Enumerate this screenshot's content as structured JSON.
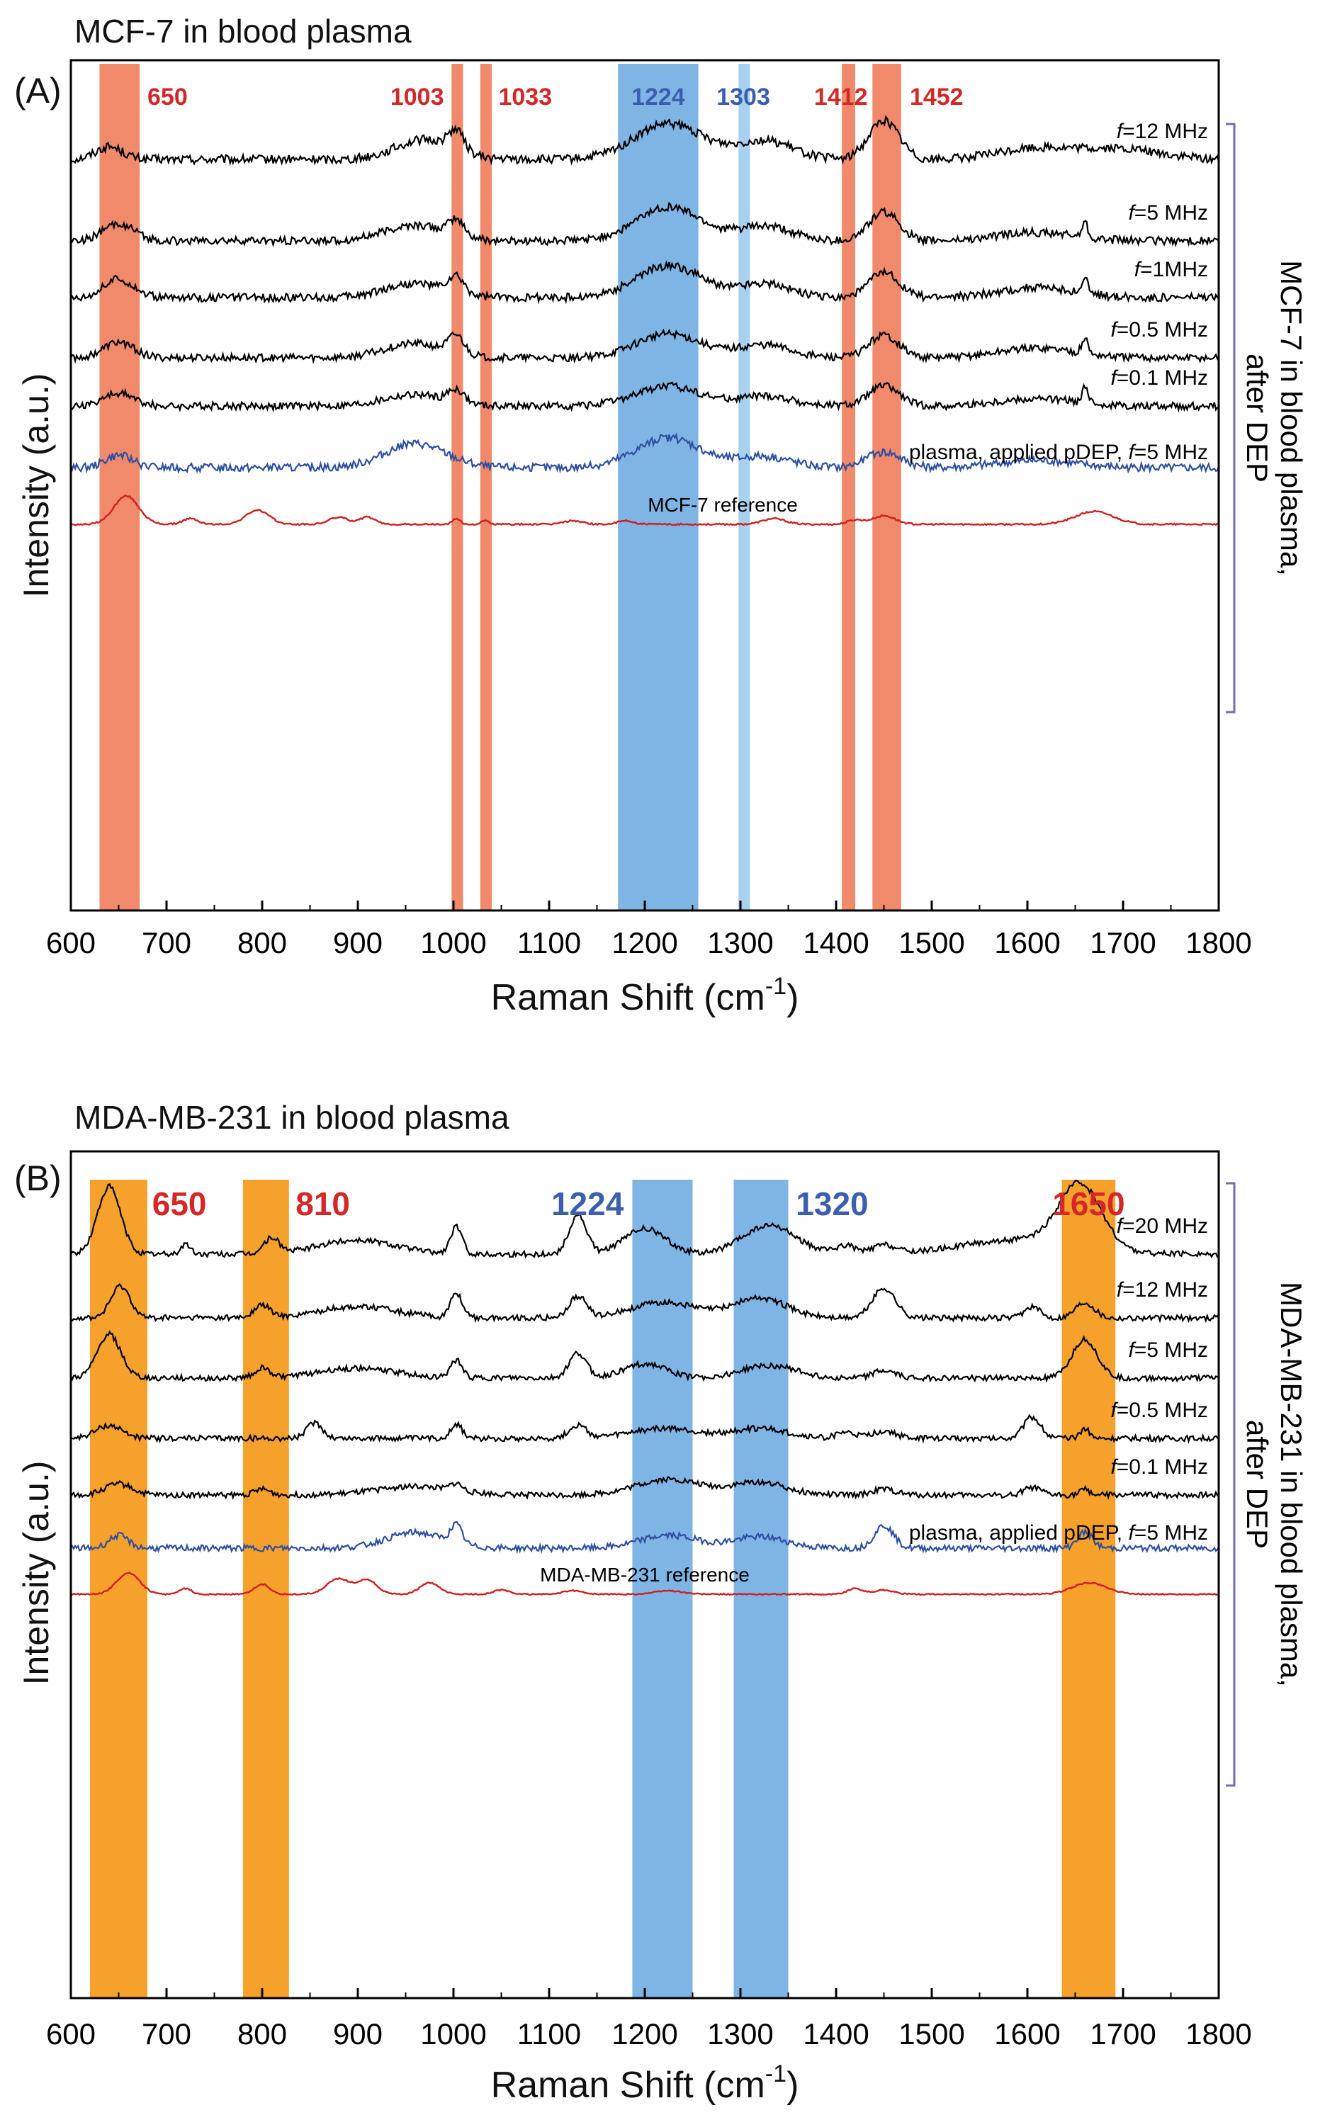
{
  "colors": {
    "red_band": "#f08a6b",
    "orange_band": "#f7a12d",
    "blue_band": "#7fb5e5",
    "light_blue_band": "#a8d0ef",
    "red_label": "#d62728",
    "blue_label": "#3b5fb0",
    "trace_black": "#000000",
    "trace_blue": "#2f4fa3",
    "trace_red": "#d11f1f",
    "bracket": "#7a68b3"
  },
  "chart_data": [
    {
      "type": "line",
      "panel": "(A)",
      "title": "MCF-7 in blood plasma",
      "xlabel": "Raman Shift (cm",
      "xlabel_sup": "-1",
      "xlabel_close": ")",
      "ylabel": "Intensity (a.u.)",
      "xlim": [
        600,
        1800
      ],
      "xticks": [
        600,
        700,
        800,
        900,
        1000,
        1100,
        1200,
        1300,
        1400,
        1500,
        1600,
        1700,
        1800
      ],
      "bracket_label_1": "MCF-7 in blood plasma,",
      "bracket_label_2": "after DEP",
      "bands": [
        {
          "label": "650",
          "from": 630,
          "to": 672,
          "color": "red",
          "label_pos": 680,
          "label_anchor": "start"
        },
        {
          "label": "1003",
          "from": 998,
          "to": 1010,
          "color": "red",
          "label_pos": 990,
          "label_anchor": "end"
        },
        {
          "label": "1033",
          "from": 1028,
          "to": 1040,
          "color": "red",
          "label_pos": 1047,
          "label_anchor": "start"
        },
        {
          "label": "1224",
          "from": 1172,
          "to": 1256,
          "color": "blue",
          "label_pos": 1214,
          "label_anchor": "middle"
        },
        {
          "label": "1303",
          "from": 1298,
          "to": 1310,
          "color": "lightblue",
          "label_pos": 1303,
          "label_anchor": "middle"
        },
        {
          "label": "1412",
          "from": 1406,
          "to": 1420,
          "color": "red",
          "label_pos": 1405,
          "label_anchor": "middle"
        },
        {
          "label": "1452",
          "from": 1438,
          "to": 1468,
          "color": "red",
          "label_pos": 1477,
          "label_anchor": "start"
        }
      ],
      "series": [
        {
          "name": "f=12 MHz",
          "italic": "f",
          "rest": "=12 MHz",
          "color": "black",
          "noise": 2.8,
          "offset": 140,
          "peaks": [
            [
              640,
              14,
              18
            ],
            [
              970,
              30,
              28
            ],
            [
              1003,
              8,
              28
            ],
            [
              1225,
              36,
              50
            ],
            [
              1325,
              30,
              26
            ],
            [
              1450,
              16,
              55
            ],
            [
              1610,
              40,
              16
            ],
            [
              1700,
              40,
              14
            ]
          ]
        },
        {
          "name": "f=5 MHz",
          "italic": "f",
          "rest": "=5 MHz",
          "color": "black",
          "noise": 2.6,
          "offset": 255,
          "peaks": [
            [
              650,
              16,
              24
            ],
            [
              960,
              32,
              22
            ],
            [
              1003,
              8,
              22
            ],
            [
              1225,
              34,
              48
            ],
            [
              1325,
              28,
              20
            ],
            [
              1450,
              16,
              40
            ],
            [
              1610,
              40,
              12
            ],
            [
              1660,
              3,
              22
            ]
          ]
        },
        {
          "name": "f=1MHz",
          "italic": "f",
          "rest": "=1MHz",
          "color": "black",
          "noise": 2.6,
          "offset": 335,
          "peaks": [
            [
              650,
              16,
              26
            ],
            [
              960,
              32,
              20
            ],
            [
              1003,
              8,
              22
            ],
            [
              1225,
              34,
              45
            ],
            [
              1325,
              28,
              20
            ],
            [
              1450,
              16,
              35
            ],
            [
              1610,
              40,
              14
            ],
            [
              1660,
              3,
              22
            ]
          ]
        },
        {
          "name": "f=0.5 MHz",
          "italic": "f",
          "rest": "=0.5 MHz",
          "color": "black",
          "noise": 2.4,
          "offset": 420,
          "peaks": [
            [
              650,
              16,
              22
            ],
            [
              960,
              32,
              20
            ],
            [
              1003,
              8,
              25
            ],
            [
              1225,
              34,
              34
            ],
            [
              1325,
              28,
              18
            ],
            [
              1450,
              16,
              32
            ],
            [
              1610,
              40,
              14
            ],
            [
              1660,
              3,
              22
            ]
          ]
        },
        {
          "name": "f=0.1 MHz",
          "italic": "f",
          "rest": "=0.1 MHz",
          "color": "black",
          "noise": 2.4,
          "offset": 488,
          "peaks": [
            [
              650,
              16,
              18
            ],
            [
              960,
              32,
              16
            ],
            [
              1003,
              8,
              18
            ],
            [
              1225,
              34,
              28
            ],
            [
              1325,
              28,
              14
            ],
            [
              1450,
              16,
              28
            ],
            [
              1610,
              40,
              10
            ],
            [
              1660,
              3,
              22
            ]
          ]
        },
        {
          "name": "plasma, applied pDEP, f=5 MHz",
          "pre": "plasma, applied pDEP, ",
          "italic": "f",
          "rest": "=5 MHz",
          "color": "blue",
          "noise": 2.6,
          "offset": 575,
          "peaks": [
            [
              650,
              14,
              18
            ],
            [
              960,
              32,
              34
            ],
            [
              1225,
              34,
              42
            ],
            [
              1325,
              28,
              16
            ],
            [
              1450,
              18,
              22
            ],
            [
              1610,
              40,
              10
            ]
          ]
        },
        {
          "name": "MCF-7 reference",
          "pre": "MCF-7 reference",
          "italic": "",
          "rest": "",
          "color": "red",
          "noise": 0.5,
          "offset": 655,
          "peaks": [
            [
              658,
              13,
              40
            ],
            [
              725,
              8,
              8
            ],
            [
              795,
              12,
              20
            ],
            [
              880,
              10,
              10
            ],
            [
              910,
              8,
              10
            ],
            [
              1003,
              4,
              8
            ],
            [
              1033,
              4,
              5
            ],
            [
              1125,
              10,
              5
            ],
            [
              1180,
              8,
              5
            ],
            [
              1335,
              12,
              8
            ],
            [
              1420,
              8,
              6
            ],
            [
              1450,
              12,
              12
            ],
            [
              1670,
              20,
              18
            ]
          ]
        }
      ]
    },
    {
      "type": "line",
      "panel": "(B)",
      "title": "MDA-MB-231 in blood plasma",
      "xlabel": "Raman Shift (cm",
      "xlabel_sup": "-1",
      "xlabel_close": ")",
      "ylabel": "Intensity (a.u.)",
      "xlim": [
        600,
        1800
      ],
      "xticks": [
        600,
        700,
        800,
        900,
        1000,
        1100,
        1200,
        1300,
        1400,
        1500,
        1600,
        1700,
        1800
      ],
      "bracket_label_1": "MDA-MB-231 in blood plasma,",
      "bracket_label_2": "after DEP",
      "bands": [
        {
          "label": "650",
          "from": 620,
          "to": 680,
          "color": "orange",
          "label_pos": 685,
          "label_anchor": "start"
        },
        {
          "label": "810",
          "from": 780,
          "to": 828,
          "color": "orange",
          "label_pos": 835,
          "label_anchor": "start"
        },
        {
          "label": "1224",
          "from": 1187,
          "to": 1250,
          "color": "blue",
          "label_pos": 1178,
          "label_anchor": "end"
        },
        {
          "label": "1320",
          "from": 1293,
          "to": 1350,
          "color": "blue",
          "label_pos": 1358,
          "label_anchor": "start"
        },
        {
          "label": "1650",
          "from": 1636,
          "to": 1692,
          "color": "orange",
          "label_pos": 1664,
          "label_anchor": "middle"
        }
      ],
      "series": [
        {
          "name": "f=20 MHz",
          "italic": "f",
          "rest": "=20 MHz",
          "color": "black",
          "noise": 1.8,
          "offset": 145,
          "peaks": [
            [
              640,
              12,
              95
            ],
            [
              720,
              5,
              14
            ],
            [
              810,
              8,
              22
            ],
            [
              900,
              40,
              20
            ],
            [
              1003,
              6,
              38
            ],
            [
              1130,
              9,
              55
            ],
            [
              1200,
              22,
              36
            ],
            [
              1330,
              28,
              40
            ],
            [
              1410,
              10,
              12
            ],
            [
              1450,
              12,
              12
            ],
            [
              1655,
              22,
              90
            ],
            [
              1590,
              60,
              20
            ]
          ]
        },
        {
          "name": "f=12 MHz",
          "italic": "f",
          "rest": "=12 MHz",
          "color": "black",
          "noise": 1.8,
          "offset": 235,
          "peaks": [
            [
              652,
              10,
              45
            ],
            [
              800,
              8,
              18
            ],
            [
              900,
              40,
              16
            ],
            [
              1003,
              6,
              35
            ],
            [
              1130,
              9,
              30
            ],
            [
              1220,
              34,
              22
            ],
            [
              1320,
              28,
              28
            ],
            [
              1450,
              12,
              42
            ],
            [
              1605,
              8,
              16
            ],
            [
              1660,
              10,
              22
            ]
          ]
        },
        {
          "name": "f=5 MHz",
          "italic": "f",
          "rest": "=5 MHz",
          "color": "black",
          "noise": 1.8,
          "offset": 320,
          "peaks": [
            [
              640,
              12,
              62
            ],
            [
              800,
              8,
              14
            ],
            [
              900,
              40,
              14
            ],
            [
              1003,
              6,
              25
            ],
            [
              1130,
              9,
              35
            ],
            [
              1200,
              22,
              20
            ],
            [
              1330,
              28,
              18
            ],
            [
              1450,
              12,
              10
            ],
            [
              1660,
              13,
              55
            ]
          ]
        },
        {
          "name": "f=0.5 MHz",
          "italic": "f",
          "rest": "=0.5 MHz",
          "color": "black",
          "noise": 1.8,
          "offset": 405,
          "peaks": [
            [
              640,
              14,
              18
            ],
            [
              855,
              8,
              22
            ],
            [
              1003,
              6,
              20
            ],
            [
              1130,
              9,
              18
            ],
            [
              1220,
              34,
              14
            ],
            [
              1320,
              28,
              14
            ],
            [
              1410,
              10,
              8
            ],
            [
              1450,
              12,
              10
            ],
            [
              1605,
              9,
              30
            ],
            [
              1660,
              5,
              14
            ]
          ]
        },
        {
          "name": "f=0.1 MHz",
          "italic": "f",
          "rest": "=0.1 MHz",
          "color": "black",
          "noise": 1.8,
          "offset": 485,
          "peaks": [
            [
              650,
              14,
              16
            ],
            [
              800,
              8,
              8
            ],
            [
              960,
              40,
              12
            ],
            [
              1003,
              6,
              10
            ],
            [
              1225,
              34,
              22
            ],
            [
              1320,
              28,
              18
            ],
            [
              1450,
              12,
              8
            ],
            [
              1605,
              9,
              10
            ],
            [
              1660,
              5,
              8
            ]
          ]
        },
        {
          "name": "plasma, applied pDEP, f=5 MHz",
          "pre": "plasma, applied pDEP, ",
          "italic": "f",
          "rest": "=5 MHz",
          "color": "blue",
          "noise": 2.0,
          "offset": 560,
          "peaks": [
            [
              650,
              10,
              18
            ],
            [
              960,
              30,
              22
            ],
            [
              1003,
              6,
              26
            ],
            [
              1225,
              30,
              18
            ],
            [
              1320,
              28,
              16
            ],
            [
              1450,
              10,
              32
            ],
            [
              1660,
              8,
              22
            ]
          ]
        },
        {
          "name": "MDA-MB-231 reference",
          "pre": "MDA-MB-231 reference",
          "italic": "",
          "rest": "",
          "color": "red",
          "noise": 0.4,
          "offset": 625,
          "peaks": [
            [
              660,
              12,
              30
            ],
            [
              720,
              6,
              8
            ],
            [
              800,
              8,
              14
            ],
            [
              880,
              12,
              22
            ],
            [
              910,
              10,
              20
            ],
            [
              975,
              10,
              16
            ],
            [
              1050,
              8,
              6
            ],
            [
              1125,
              10,
              5
            ],
            [
              1225,
              14,
              5
            ],
            [
              1420,
              8,
              8
            ],
            [
              1450,
              10,
              6
            ],
            [
              1665,
              18,
              16
            ]
          ]
        }
      ]
    }
  ]
}
